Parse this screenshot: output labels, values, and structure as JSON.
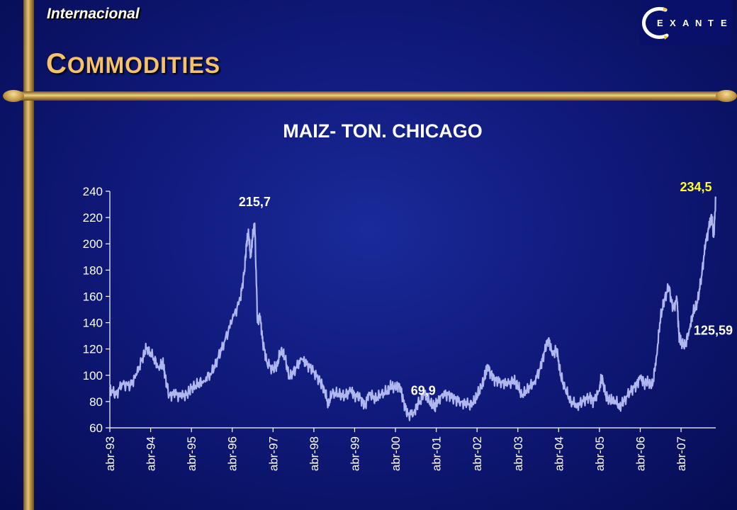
{
  "header": {
    "section_label": "Internacional",
    "title_initial": "C",
    "title_rest": "OMMODITIES",
    "logo_text": "EXANTE"
  },
  "colors": {
    "background": "#101a7c",
    "gold": "#c7a050",
    "title": "#f5c26b",
    "series": "#b0b6ee",
    "highlight": "#ffff33"
  },
  "chart_data": {
    "type": "line",
    "title": "MAIZ- TON. CHICAGO",
    "ylim": [
      60,
      240
    ],
    "yticks": [
      60,
      80,
      100,
      120,
      140,
      160,
      180,
      200,
      220,
      240
    ],
    "xlim": [
      1993.25,
      2008.1
    ],
    "xticks": [
      {
        "label": "abr-93",
        "x": 1993.25
      },
      {
        "label": "abr-94",
        "x": 1994.25
      },
      {
        "label": "abr-95",
        "x": 1995.25
      },
      {
        "label": "abr-96",
        "x": 1996.25
      },
      {
        "label": "abr-97",
        "x": 1997.25
      },
      {
        "label": "abr-98",
        "x": 1998.25
      },
      {
        "label": "abr-99",
        "x": 1999.25
      },
      {
        "label": "abr-00",
        "x": 2000.25
      },
      {
        "label": "abr-01",
        "x": 2001.25
      },
      {
        "label": "abr-02",
        "x": 2002.25
      },
      {
        "label": "abr-03",
        "x": 2003.25
      },
      {
        "label": "abr-04",
        "x": 2004.25
      },
      {
        "label": "abr-05",
        "x": 2005.25
      },
      {
        "label": "abr-06",
        "x": 2006.25
      },
      {
        "label": "abr-07",
        "x": 2007.25
      }
    ],
    "grid": false,
    "series": [
      {
        "name": "",
        "points": [
          [
            1993.25,
            90
          ],
          [
            1993.4,
            85
          ],
          [
            1993.55,
            94
          ],
          [
            1993.75,
            92
          ],
          [
            1993.9,
            100
          ],
          [
            1994.05,
            113
          ],
          [
            1994.15,
            121
          ],
          [
            1994.3,
            114
          ],
          [
            1994.45,
            106
          ],
          [
            1994.55,
            110
          ],
          [
            1994.6,
            100
          ],
          [
            1994.7,
            85
          ],
          [
            1994.85,
            86
          ],
          [
            1995.0,
            84
          ],
          [
            1995.15,
            86
          ],
          [
            1995.25,
            90
          ],
          [
            1995.4,
            93
          ],
          [
            1995.55,
            96
          ],
          [
            1995.75,
            102
          ],
          [
            1995.9,
            113
          ],
          [
            1996.05,
            125
          ],
          [
            1996.25,
            142
          ],
          [
            1996.45,
            158
          ],
          [
            1996.55,
            180
          ],
          [
            1996.6,
            200
          ],
          [
            1996.65,
            208
          ],
          [
            1996.7,
            190
          ],
          [
            1996.75,
            205
          ],
          [
            1996.8,
            215.7
          ],
          [
            1996.87,
            140
          ],
          [
            1996.93,
            145
          ],
          [
            1997.0,
            125
          ],
          [
            1997.1,
            110
          ],
          [
            1997.25,
            104
          ],
          [
            1997.35,
            108
          ],
          [
            1997.45,
            120
          ],
          [
            1997.55,
            112
          ],
          [
            1997.65,
            98
          ],
          [
            1997.8,
            105
          ],
          [
            1997.95,
            112
          ],
          [
            1998.1,
            108
          ],
          [
            1998.25,
            103
          ],
          [
            1998.4,
            95
          ],
          [
            1998.5,
            90
          ],
          [
            1998.6,
            78
          ],
          [
            1998.7,
            86
          ],
          [
            1998.85,
            86
          ],
          [
            1999.0,
            84
          ],
          [
            1999.15,
            88
          ],
          [
            1999.25,
            85
          ],
          [
            1999.4,
            83
          ],
          [
            1999.5,
            76
          ],
          [
            1999.6,
            87
          ],
          [
            1999.75,
            82
          ],
          [
            1999.9,
            85
          ],
          [
            2000.05,
            88
          ],
          [
            2000.15,
            92
          ],
          [
            2000.25,
            90
          ],
          [
            2000.35,
            93
          ],
          [
            2000.45,
            80
          ],
          [
            2000.55,
            69.9
          ],
          [
            2000.7,
            72
          ],
          [
            2000.8,
            78
          ],
          [
            2000.95,
            85
          ],
          [
            2001.1,
            80
          ],
          [
            2001.2,
            75
          ],
          [
            2001.25,
            78
          ],
          [
            2001.4,
            86
          ],
          [
            2001.55,
            85
          ],
          [
            2001.7,
            82
          ],
          [
            2001.85,
            80
          ],
          [
            2002.0,
            78
          ],
          [
            2002.15,
            78
          ],
          [
            2002.25,
            85
          ],
          [
            2002.35,
            90
          ],
          [
            2002.45,
            100
          ],
          [
            2002.5,
            108
          ],
          [
            2002.6,
            100
          ],
          [
            2002.7,
            96
          ],
          [
            2002.85,
            95
          ],
          [
            2003.0,
            93
          ],
          [
            2003.15,
            96
          ],
          [
            2003.25,
            92
          ],
          [
            2003.35,
            84
          ],
          [
            2003.5,
            90
          ],
          [
            2003.65,
            95
          ],
          [
            2003.8,
            105
          ],
          [
            2003.9,
            118
          ],
          [
            2004.0,
            128
          ],
          [
            2004.1,
            115
          ],
          [
            2004.2,
            120
          ],
          [
            2004.3,
            100
          ],
          [
            2004.4,
            90
          ],
          [
            2004.55,
            80
          ],
          [
            2004.7,
            77
          ],
          [
            2004.85,
            80
          ],
          [
            2005.0,
            84
          ],
          [
            2005.1,
            80
          ],
          [
            2005.25,
            88
          ],
          [
            2005.3,
            100
          ],
          [
            2005.4,
            85
          ],
          [
            2005.5,
            80
          ],
          [
            2005.6,
            82
          ],
          [
            2005.75,
            76
          ],
          [
            2005.85,
            80
          ],
          [
            2006.0,
            88
          ],
          [
            2006.15,
            92
          ],
          [
            2006.25,
            98
          ],
          [
            2006.35,
            94
          ],
          [
            2006.45,
            95
          ],
          [
            2006.55,
            92
          ],
          [
            2006.65,
            115
          ],
          [
            2006.75,
            145
          ],
          [
            2006.85,
            158
          ],
          [
            2006.95,
            168
          ],
          [
            2007.05,
            150
          ],
          [
            2007.15,
            158
          ],
          [
            2007.2,
            130
          ],
          [
            2007.25,
            125.59
          ],
          [
            2007.35,
            122
          ],
          [
            2007.45,
            135
          ],
          [
            2007.55,
            148
          ],
          [
            2007.65,
            155
          ],
          [
            2007.75,
            175
          ],
          [
            2007.85,
            200
          ],
          [
            2007.95,
            215
          ],
          [
            2008.0,
            222
          ],
          [
            2008.05,
            205
          ],
          [
            2008.1,
            234.5
          ]
        ]
      }
    ],
    "annotations": [
      {
        "text": "215,7",
        "x": 1996.8,
        "y": 215.7,
        "color": "#ffffff"
      },
      {
        "text": "69,9",
        "x": 2000.55,
        "y": 69.9,
        "color": "#ffffff"
      },
      {
        "text": "234,5",
        "x": 2008.1,
        "y": 234.5,
        "color": "#ffff33"
      },
      {
        "text": "125,59",
        "x": 2007.25,
        "y": 125.59,
        "color": "#ffffff"
      }
    ]
  }
}
